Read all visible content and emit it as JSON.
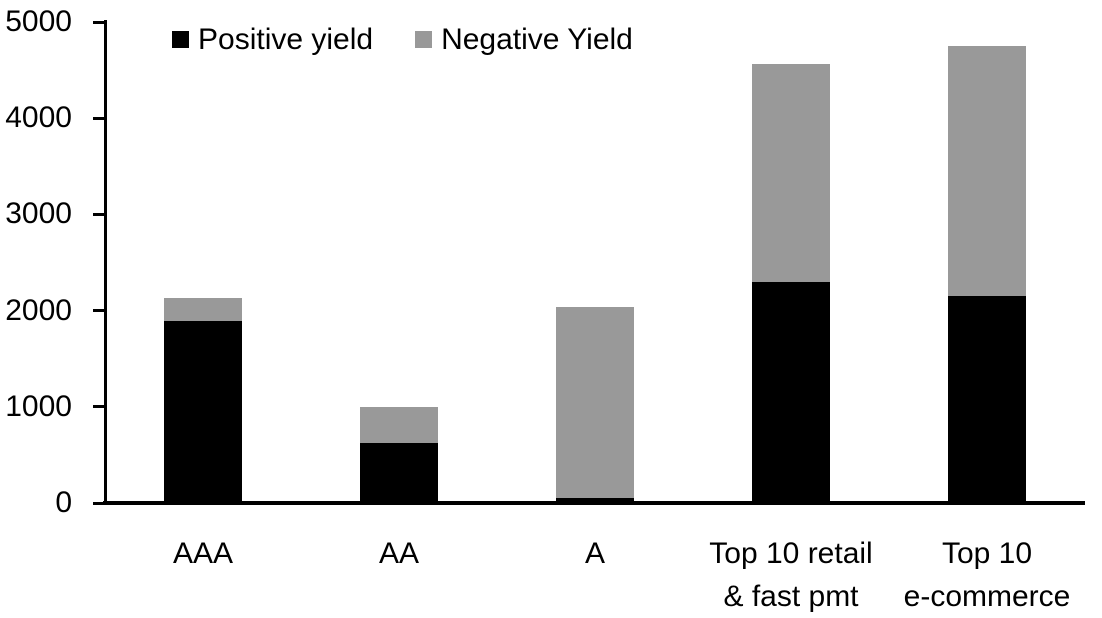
{
  "chart_data": {
    "type": "bar",
    "stacked": true,
    "title": "",
    "xlabel": "",
    "ylabel": "",
    "categories": [
      "AAA",
      "AA",
      "A",
      "Top 10 retail & fast pmt",
      "Top 10 e-commerce"
    ],
    "category_lines": [
      [
        "AAA"
      ],
      [
        "AA"
      ],
      [
        "A"
      ],
      [
        "Top 10 retail",
        "& fast pmt"
      ],
      [
        "Top 10",
        "e-commerce"
      ]
    ],
    "series": [
      {
        "name": "Positive yield",
        "color": "#000000",
        "values": [
          1890,
          620,
          50,
          2300,
          2150
        ]
      },
      {
        "name": "Negative Yield",
        "color": "#999999",
        "values": [
          240,
          380,
          1990,
          2260,
          2600
        ]
      }
    ],
    "totals": [
      2130,
      1000,
      2040,
      4560,
      4750
    ],
    "ylim": [
      0,
      5000
    ],
    "yticks": [
      0,
      1000,
      2000,
      3000,
      4000,
      5000
    ],
    "legend_position": "top",
    "grid": false,
    "axis_color": "#000000",
    "background_color": "#ffffff"
  }
}
